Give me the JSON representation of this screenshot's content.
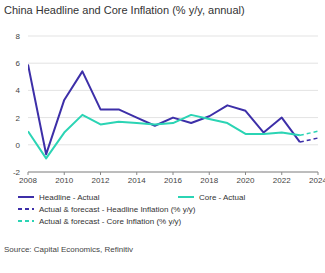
{
  "chart_data": {
    "type": "line",
    "title": "China Headline and Core Inflation (% y/y, annual)",
    "source": "Source: Capital Economics, Refinitiv",
    "x": [
      2008,
      2009,
      2010,
      2011,
      2012,
      2013,
      2014,
      2015,
      2016,
      2017,
      2018,
      2019,
      2020,
      2021,
      2022,
      2023,
      2024
    ],
    "series": [
      {
        "name": "Headline - Actual",
        "color": "#3d2fa8",
        "line_style": "solid",
        "values": [
          5.9,
          -0.7,
          3.3,
          5.4,
          2.6,
          2.6,
          2.0,
          1.4,
          2.0,
          1.6,
          2.1,
          2.9,
          2.5,
          0.9,
          2.0,
          0.2,
          null
        ]
      },
      {
        "name": "Core - Actual",
        "color": "#2bd4b4",
        "line_style": "solid",
        "values": [
          1.0,
          -1.0,
          0.9,
          2.2,
          1.5,
          1.7,
          1.6,
          1.5,
          1.6,
          2.2,
          1.9,
          1.6,
          0.8,
          0.8,
          0.9,
          0.7,
          null
        ]
      },
      {
        "name": "Actual & forecast - Headline Inflation (% y/y)",
        "color": "#3d2fa8",
        "line_style": "dashed",
        "values": [
          null,
          null,
          null,
          null,
          null,
          null,
          null,
          null,
          null,
          null,
          null,
          null,
          null,
          null,
          null,
          0.2,
          0.5
        ]
      },
      {
        "name": "Actual & forecast - Core Inflation (% y/y)",
        "color": "#2bd4b4",
        "line_style": "dashed",
        "values": [
          null,
          null,
          null,
          null,
          null,
          null,
          null,
          null,
          null,
          null,
          null,
          null,
          null,
          null,
          null,
          0.7,
          1.0
        ]
      }
    ],
    "xlim": [
      2008,
      2024
    ],
    "xticks": [
      2008,
      2010,
      2012,
      2014,
      2016,
      2018,
      2020,
      2022,
      2024
    ],
    "ylim": [
      -2,
      8
    ],
    "yticks": [
      -2,
      0,
      2,
      4,
      6,
      8
    ],
    "grid": true,
    "legend": "bottom"
  }
}
